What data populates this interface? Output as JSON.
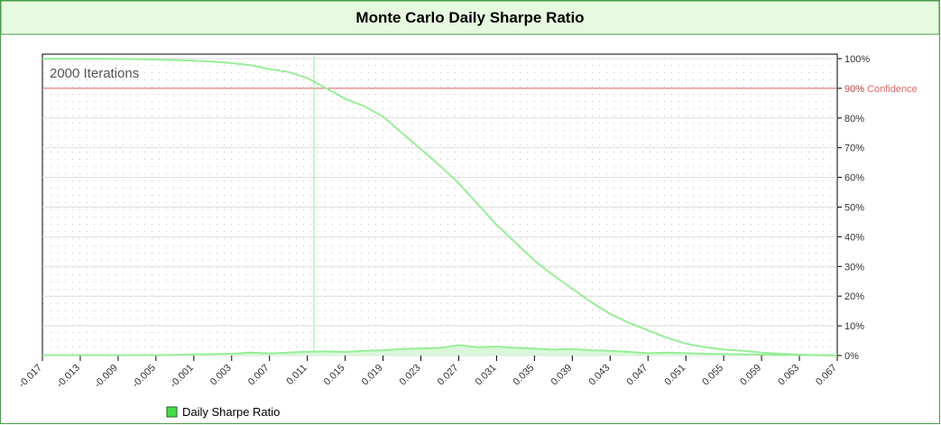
{
  "chart_data": {
    "type": "line",
    "title": "Monte Carlo Daily Sharpe Ratio",
    "annotation": "2000 Iterations",
    "reference_line": {
      "value": 90,
      "label": "90% Confidence",
      "color": "#e06666"
    },
    "vline_x": 0.0117,
    "x": [
      -0.017,
      -0.015,
      -0.013,
      -0.011,
      -0.009,
      -0.007,
      -0.005,
      -0.003,
      -0.001,
      0.001,
      0.003,
      0.005,
      0.007,
      0.009,
      0.011,
      0.013,
      0.015,
      0.017,
      0.019,
      0.021,
      0.023,
      0.025,
      0.027,
      0.029,
      0.031,
      0.033,
      0.035,
      0.037,
      0.039,
      0.041,
      0.043,
      0.045,
      0.047,
      0.049,
      0.051,
      0.053,
      0.055,
      0.057,
      0.059,
      0.061,
      0.063,
      0.065,
      0.067
    ],
    "series": [
      {
        "name": "Daily Sharpe Ratio",
        "color": "#98ee98",
        "values": [
          100,
          100,
          100,
          100,
          99.9,
          99.8,
          99.7,
          99.5,
          99.3,
          99,
          98.5,
          97.8,
          96.5,
          95.5,
          93.5,
          90,
          86.5,
          84,
          80.5,
          75,
          69.5,
          64,
          58,
          51,
          44,
          38,
          32,
          27,
          22.5,
          18,
          14,
          11,
          8.5,
          6,
          4,
          2.8,
          2,
          1.6,
          1,
          0.6,
          0.3,
          0.1,
          0
        ]
      },
      {
        "color": "#98ee98",
        "fill": "#d8f8d8",
        "values": [
          0.1,
          0.1,
          0.1,
          0.1,
          0.1,
          0.1,
          0.1,
          0.2,
          0.4,
          0.5,
          0.6,
          1,
          0.7,
          1,
          1.3,
          1.4,
          1.2,
          1.6,
          1.8,
          2.2,
          2.4,
          2.6,
          3.5,
          2.8,
          3,
          2.6,
          2.3,
          2,
          2.2,
          1.8,
          1.6,
          1.2,
          0.8,
          1,
          0.8,
          0.6,
          0.5,
          0.4,
          0.3,
          0.2,
          0.2,
          0.1,
          0.1
        ]
      }
    ],
    "xlim": [
      -0.017,
      0.067
    ],
    "xticks": [
      -0.017,
      -0.013,
      -0.009,
      -0.005,
      -0.001,
      0.003,
      0.007,
      0.011,
      0.015,
      0.019,
      0.023,
      0.027,
      0.031,
      0.035,
      0.039,
      0.043,
      0.047,
      0.051,
      0.055,
      0.059,
      0.063,
      0.067
    ],
    "ylim": [
      0,
      100
    ],
    "yticks": [
      {
        "value": 0,
        "label": "0%"
      },
      {
        "value": 10,
        "label": "10%"
      },
      {
        "value": 20,
        "label": "20%"
      },
      {
        "value": 30,
        "label": "30%"
      },
      {
        "value": 40,
        "label": "40%"
      },
      {
        "value": 50,
        "label": "50%"
      },
      {
        "value": 60,
        "label": "60%"
      },
      {
        "value": 70,
        "label": "70%"
      },
      {
        "value": 80,
        "label": "80%"
      },
      {
        "value": 90,
        "label": "90%"
      },
      {
        "value": 100,
        "label": "100%"
      }
    ],
    "grid": true,
    "legend": "bottom-left"
  }
}
